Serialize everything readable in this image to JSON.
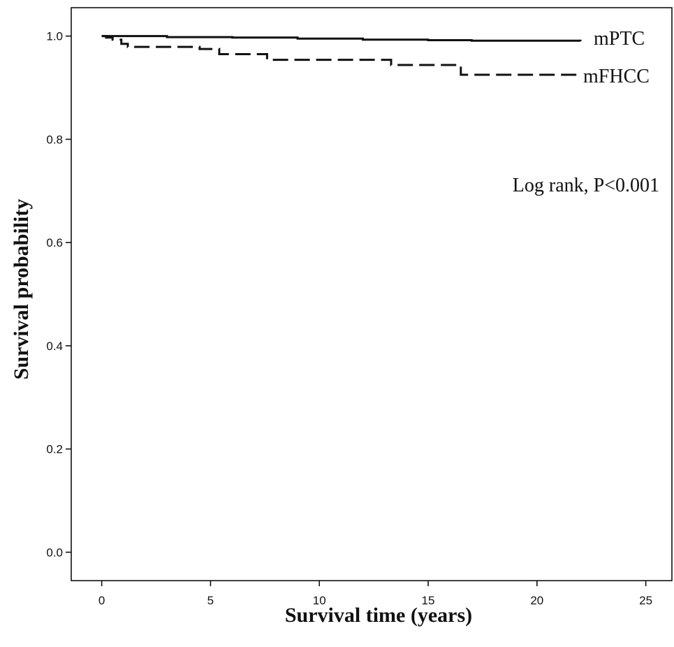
{
  "chart_data": {
    "type": "line",
    "xlabel": "Survival time (years)",
    "ylabel": "Survival probability",
    "xlim": [
      -1.4,
      26.2
    ],
    "ylim": [
      -0.055,
      1.055
    ],
    "xticks": [
      0,
      5,
      10,
      15,
      20,
      25
    ],
    "xtick_labels": [
      "0",
      "5",
      "10",
      "15",
      "20",
      "25"
    ],
    "yticks": [
      0.0,
      0.2,
      0.4,
      0.6,
      0.8,
      1.0
    ],
    "ytick_labels": [
      "0.0",
      "0.2",
      "0.4",
      "0.6",
      "0.8",
      "1.0"
    ],
    "grid": false,
    "legend": "none",
    "series": [
      {
        "name": "mPTC",
        "line_style": "solid",
        "color": "#111111",
        "step": true,
        "points": [
          [
            0,
            1.0
          ],
          [
            3,
            0.998
          ],
          [
            6,
            0.997
          ],
          [
            9,
            0.995
          ],
          [
            12,
            0.993
          ],
          [
            15,
            0.992
          ],
          [
            17,
            0.991
          ],
          [
            22,
            0.99
          ]
        ]
      },
      {
        "name": "mFHCC",
        "line_style": "dashed",
        "color": "#111111",
        "step": true,
        "points": [
          [
            0,
            1.0
          ],
          [
            0.2,
            0.997
          ],
          [
            0.5,
            0.993
          ],
          [
            0.9,
            0.985
          ],
          [
            1.2,
            0.979
          ],
          [
            4.5,
            0.975
          ],
          [
            5.4,
            0.965
          ],
          [
            7.6,
            0.954
          ],
          [
            13.3,
            0.944
          ],
          [
            16.5,
            0.925
          ],
          [
            22,
            0.925
          ]
        ]
      }
    ],
    "annotations": [
      "Log rank, P<0.001"
    ]
  }
}
